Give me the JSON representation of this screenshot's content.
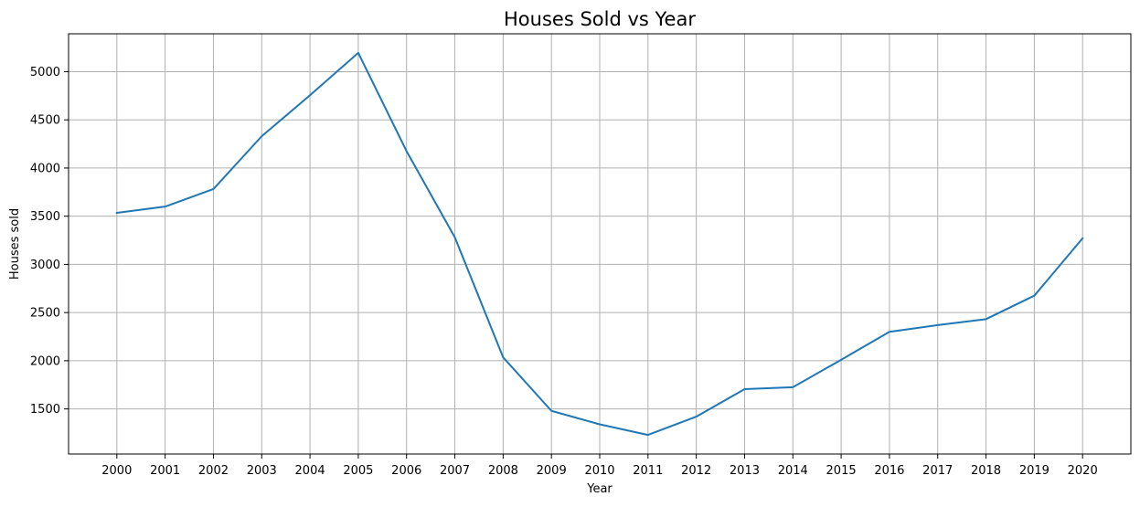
{
  "chart_data": {
    "type": "line",
    "title": "Houses Sold vs Year",
    "xlabel": "Year",
    "ylabel": "Houses sold",
    "x": [
      2000,
      2001,
      2002,
      2003,
      2004,
      2005,
      2006,
      2007,
      2008,
      2009,
      2010,
      2011,
      2012,
      2013,
      2014,
      2015,
      2016,
      2017,
      2018,
      2019,
      2020
    ],
    "x_tick_labels": [
      "2000",
      "2001",
      "2002",
      "2003",
      "2004",
      "2005",
      "2006",
      "2007",
      "2008",
      "2009",
      "2010",
      "2011",
      "2012",
      "2013",
      "2014",
      "2015",
      "2016",
      "2017",
      "2018",
      "2019",
      "2020"
    ],
    "series": [
      {
        "values": [
          3535,
          3600,
          3782,
          4330,
          4755,
          5195,
          4175,
          3280,
          2035,
          1480,
          1340,
          1230,
          1420,
          1705,
          1725,
          2010,
          2300,
          2370,
          2432,
          2675,
          3270
        ]
      }
    ],
    "y_ticks": [
      1500,
      2000,
      2500,
      3000,
      3500,
      4000,
      4500,
      5000
    ],
    "y_tick_labels": [
      "1500",
      "2000",
      "2500",
      "3000",
      "3500",
      "4000",
      "4500",
      "5000"
    ],
    "xlim": [
      1999.0,
      2021.0
    ],
    "ylim": [
      1032,
      5393
    ],
    "grid": true,
    "colors": {
      "line": "#1f77b4",
      "grid": "#b0b0b0",
      "axes": "#000000"
    }
  }
}
